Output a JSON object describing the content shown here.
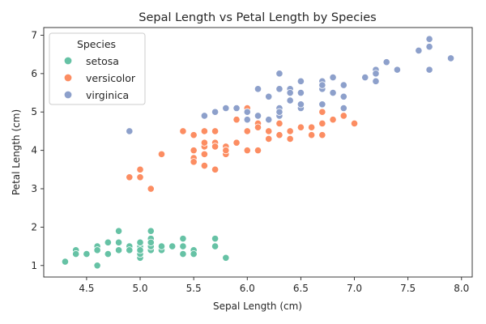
{
  "chart_data": {
    "type": "scatter",
    "title": "Sepal Length vs Petal Length by Species",
    "xlabel": "Sepal Length (cm)",
    "ylabel": "Petal Length (cm)",
    "xlim": [
      4.1,
      8.1
    ],
    "ylim": [
      0.7,
      7.2
    ],
    "xticks": [
      "4.5",
      "5.0",
      "5.5",
      "6.0",
      "6.5",
      "7.0",
      "7.5",
      "8.0"
    ],
    "yticks": [
      "1",
      "2",
      "3",
      "4",
      "5",
      "6",
      "7"
    ],
    "grid": false,
    "legend_title": "Species",
    "legend_placement": "top-left",
    "series": [
      {
        "name": "setosa",
        "color": "#66c2a5",
        "points": [
          [
            5.1,
            1.4
          ],
          [
            4.9,
            1.4
          ],
          [
            4.7,
            1.3
          ],
          [
            4.6,
            1.5
          ],
          [
            5.0,
            1.4
          ],
          [
            5.4,
            1.7
          ],
          [
            4.6,
            1.4
          ],
          [
            5.0,
            1.5
          ],
          [
            4.4,
            1.4
          ],
          [
            4.9,
            1.5
          ],
          [
            5.4,
            1.5
          ],
          [
            4.8,
            1.6
          ],
          [
            4.8,
            1.4
          ],
          [
            4.3,
            1.1
          ],
          [
            5.8,
            1.2
          ],
          [
            5.7,
            1.5
          ],
          [
            5.4,
            1.3
          ],
          [
            5.1,
            1.4
          ],
          [
            5.7,
            1.7
          ],
          [
            5.1,
            1.5
          ],
          [
            5.4,
            1.7
          ],
          [
            5.1,
            1.5
          ],
          [
            4.6,
            1.0
          ],
          [
            5.1,
            1.7
          ],
          [
            4.8,
            1.9
          ],
          [
            5.0,
            1.6
          ],
          [
            5.0,
            1.6
          ],
          [
            5.2,
            1.5
          ],
          [
            5.2,
            1.4
          ],
          [
            4.7,
            1.6
          ],
          [
            4.8,
            1.6
          ],
          [
            5.4,
            1.5
          ],
          [
            5.2,
            1.5
          ],
          [
            5.5,
            1.4
          ],
          [
            4.9,
            1.5
          ],
          [
            5.0,
            1.2
          ],
          [
            5.5,
            1.3
          ],
          [
            4.9,
            1.4
          ],
          [
            4.4,
            1.3
          ],
          [
            5.1,
            1.5
          ],
          [
            5.0,
            1.3
          ],
          [
            4.5,
            1.3
          ],
          [
            4.4,
            1.3
          ],
          [
            5.0,
            1.6
          ],
          [
            5.1,
            1.9
          ],
          [
            4.8,
            1.4
          ],
          [
            5.1,
            1.6
          ],
          [
            4.6,
            1.4
          ],
          [
            5.3,
            1.5
          ],
          [
            5.0,
            1.4
          ]
        ]
      },
      {
        "name": "versicolor",
        "color": "#fc8d62",
        "points": [
          [
            7.0,
            4.7
          ],
          [
            6.4,
            4.5
          ],
          [
            6.9,
            4.9
          ],
          [
            5.5,
            4.0
          ],
          [
            6.5,
            4.6
          ],
          [
            5.7,
            4.5
          ],
          [
            6.3,
            4.7
          ],
          [
            4.9,
            3.3
          ],
          [
            6.6,
            4.6
          ],
          [
            5.2,
            3.9
          ],
          [
            5.0,
            3.5
          ],
          [
            5.9,
            4.2
          ],
          [
            6.0,
            4.0
          ],
          [
            6.1,
            4.7
          ],
          [
            5.6,
            3.6
          ],
          [
            6.7,
            4.4
          ],
          [
            5.6,
            4.5
          ],
          [
            5.8,
            4.1
          ],
          [
            6.2,
            4.5
          ],
          [
            5.6,
            3.9
          ],
          [
            5.9,
            4.8
          ],
          [
            6.1,
            4.0
          ],
          [
            6.3,
            4.9
          ],
          [
            6.1,
            4.7
          ],
          [
            6.4,
            4.3
          ],
          [
            6.6,
            4.4
          ],
          [
            6.8,
            4.8
          ],
          [
            6.7,
            5.0
          ],
          [
            6.0,
            4.5
          ],
          [
            5.7,
            3.5
          ],
          [
            5.5,
            3.8
          ],
          [
            5.5,
            3.7
          ],
          [
            5.8,
            3.9
          ],
          [
            6.0,
            5.1
          ],
          [
            5.4,
            4.5
          ],
          [
            6.0,
            4.5
          ],
          [
            6.7,
            4.7
          ],
          [
            6.3,
            4.4
          ],
          [
            5.6,
            4.1
          ],
          [
            5.5,
            4.0
          ],
          [
            5.5,
            4.4
          ],
          [
            6.1,
            4.6
          ],
          [
            5.8,
            4.0
          ],
          [
            5.0,
            3.3
          ],
          [
            5.6,
            4.2
          ],
          [
            5.7,
            4.2
          ],
          [
            5.7,
            4.2
          ],
          [
            6.2,
            4.3
          ],
          [
            5.1,
            3.0
          ],
          [
            5.7,
            4.1
          ]
        ]
      },
      {
        "name": "virginica",
        "color": "#8da0cb",
        "points": [
          [
            6.3,
            6.0
          ],
          [
            5.8,
            5.1
          ],
          [
            7.1,
            5.9
          ],
          [
            6.3,
            5.6
          ],
          [
            6.5,
            5.8
          ],
          [
            7.6,
            6.6
          ],
          [
            4.9,
            4.5
          ],
          [
            7.3,
            6.3
          ],
          [
            6.7,
            5.8
          ],
          [
            7.2,
            6.1
          ],
          [
            6.5,
            5.1
          ],
          [
            6.4,
            5.3
          ],
          [
            6.8,
            5.5
          ],
          [
            5.7,
            5.0
          ],
          [
            5.8,
            5.1
          ],
          [
            6.4,
            5.3
          ],
          [
            6.5,
            5.5
          ],
          [
            7.7,
            6.7
          ],
          [
            7.7,
            6.9
          ],
          [
            6.0,
            5.0
          ],
          [
            6.9,
            5.7
          ],
          [
            5.6,
            4.9
          ],
          [
            7.7,
            6.7
          ],
          [
            6.3,
            4.9
          ],
          [
            6.7,
            5.7
          ],
          [
            7.2,
            6.0
          ],
          [
            6.2,
            4.8
          ],
          [
            6.1,
            4.9
          ],
          [
            6.4,
            5.6
          ],
          [
            7.2,
            5.8
          ],
          [
            7.4,
            6.1
          ],
          [
            7.9,
            6.4
          ],
          [
            6.4,
            5.6
          ],
          [
            6.3,
            5.1
          ],
          [
            6.1,
            5.6
          ],
          [
            7.7,
            6.1
          ],
          [
            6.3,
            5.6
          ],
          [
            6.4,
            5.5
          ],
          [
            6.0,
            4.8
          ],
          [
            6.9,
            5.4
          ],
          [
            6.7,
            5.6
          ],
          [
            6.9,
            5.1
          ],
          [
            5.8,
            5.1
          ],
          [
            6.8,
            5.9
          ],
          [
            6.7,
            5.7
          ],
          [
            6.7,
            5.2
          ],
          [
            6.3,
            5.0
          ],
          [
            6.5,
            5.2
          ],
          [
            6.2,
            5.4
          ],
          [
            5.9,
            5.1
          ]
        ]
      }
    ]
  }
}
